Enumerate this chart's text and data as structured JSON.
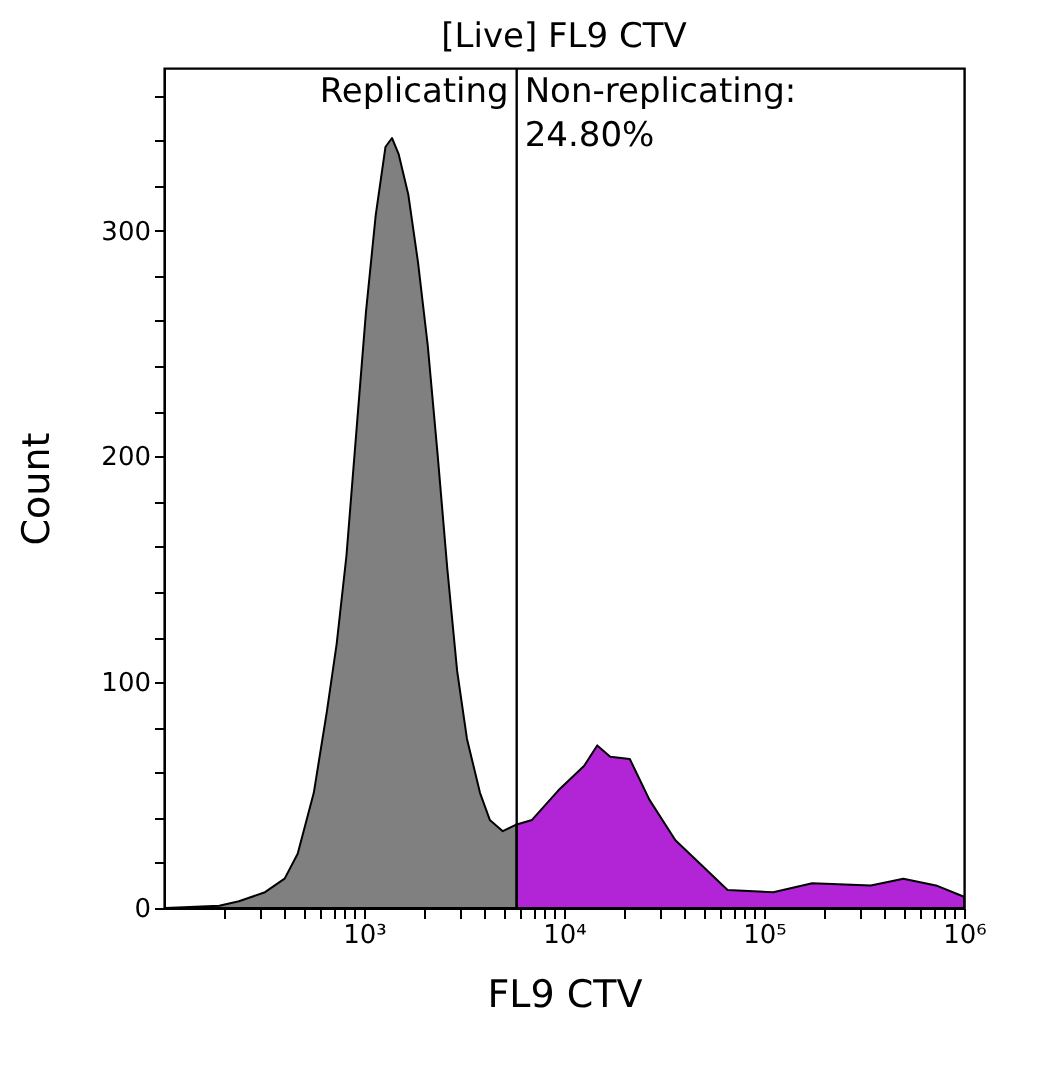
{
  "chart_data": {
    "type": "area",
    "title": "[Live] FL9 CTV",
    "xlabel": "FL9 CTV",
    "ylabel": "Count",
    "log": "x",
    "grid": false,
    "annotations": [
      "Replicating",
      "Non-replicating:\n24.80%"
    ],
    "ref_lines": [
      {
        "axis": "x",
        "value": 5800,
        "color": "#000000"
      }
    ],
    "xlim": [
      100,
      1000000
    ],
    "ylim": [
      0,
      372
    ],
    "xticks": [
      {
        "value": 200,
        "label": null
      },
      {
        "value": 300,
        "label": null
      },
      {
        "value": 400,
        "label": null
      },
      {
        "value": 500,
        "label": null
      },
      {
        "value": 600,
        "label": null
      },
      {
        "value": 700,
        "label": null
      },
      {
        "value": 800,
        "label": null
      },
      {
        "value": 900,
        "label": null
      },
      {
        "value": 1000,
        "label": "10³"
      },
      {
        "value": 2000,
        "label": null
      },
      {
        "value": 3000,
        "label": null
      },
      {
        "value": 4000,
        "label": null
      },
      {
        "value": 5000,
        "label": null
      },
      {
        "value": 6000,
        "label": null
      },
      {
        "value": 7000,
        "label": null
      },
      {
        "value": 8000,
        "label": null
      },
      {
        "value": 9000,
        "label": null
      },
      {
        "value": 10000,
        "label": "10⁴"
      },
      {
        "value": 20000,
        "label": null
      },
      {
        "value": 30000,
        "label": null
      },
      {
        "value": 40000,
        "label": null
      },
      {
        "value": 50000,
        "label": null
      },
      {
        "value": 60000,
        "label": null
      },
      {
        "value": 70000,
        "label": null
      },
      {
        "value": 80000,
        "label": null
      },
      {
        "value": 90000,
        "label": null
      },
      {
        "value": 100000,
        "label": "10⁵"
      },
      {
        "value": 200000,
        "label": null
      },
      {
        "value": 300000,
        "label": null
      },
      {
        "value": 400000,
        "label": null
      },
      {
        "value": 500000,
        "label": null
      },
      {
        "value": 600000,
        "label": null
      },
      {
        "value": 700000,
        "label": null
      },
      {
        "value": 800000,
        "label": null
      },
      {
        "value": 900000,
        "label": null
      },
      {
        "value": 1000000,
        "label": "10⁶"
      }
    ],
    "yticks": [
      0,
      {
        "value": 20,
        "label": null
      },
      {
        "value": 40,
        "label": null
      },
      {
        "value": 60,
        "label": null
      },
      {
        "value": 80,
        "label": null
      },
      100,
      {
        "value": 120,
        "label": null
      },
      {
        "value": 140,
        "label": null
      },
      {
        "value": 160,
        "label": null
      },
      {
        "value": 180,
        "label": null
      },
      200,
      {
        "value": 220,
        "label": null
      },
      {
        "value": 240,
        "label": null
      },
      {
        "value": 260,
        "label": null
      },
      {
        "value": 280,
        "label": null
      },
      300,
      {
        "value": 320,
        "label": null
      },
      {
        "value": 340,
        "label": null
      },
      {
        "value": 360,
        "label": null
      }
    ],
    "series": [
      {
        "color": "#808080",
        "x": [
          102,
          189,
          237,
          320,
          401,
          466,
          561,
          652,
          730,
          817,
          914,
          1023,
          1145,
          1280,
          1380,
          1489,
          1665,
          1862,
          2084,
          2333,
          2611,
          2922,
          3271,
          3802,
          4256,
          4943,
          5800
        ],
        "values": [
          0,
          1,
          3,
          7,
          13,
          24,
          51,
          87,
          117,
          156,
          210,
          264,
          307,
          337,
          341,
          334,
          316,
          286,
          249,
          201,
          150,
          105,
          75,
          51,
          39,
          34,
          37
        ]
      },
      {
        "color": "#b125d6",
        "x": [
          5800,
          6918,
          9354,
          12620,
          14660,
          17030,
          21330,
          26720,
          36060,
          48640,
          65760,
          111200,
          174200,
          342000,
          497700,
          724400,
          1000000
        ],
        "values": [
          37,
          39,
          52,
          63,
          72,
          67,
          66,
          48,
          30,
          19,
          8,
          7,
          11,
          10,
          13,
          10,
          5
        ]
      }
    ]
  }
}
